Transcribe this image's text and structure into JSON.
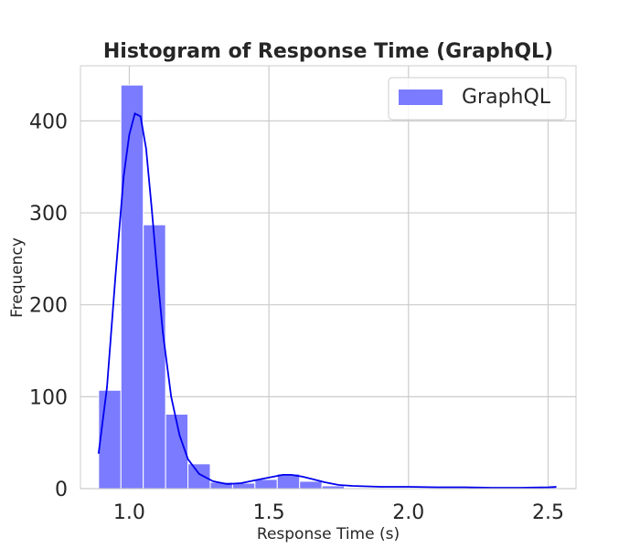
{
  "chart_data": {
    "type": "bar",
    "title": "Histogram of Response Time (GraphQL)",
    "xlabel": "Response Time (s)",
    "ylabel": "Frequency",
    "xlim": [
      0.825,
      2.6
    ],
    "ylim": [
      0,
      460
    ],
    "xticks": [
      1.0,
      1.5,
      2.0,
      2.5
    ],
    "xtick_labels": [
      "1.0",
      "1.5",
      "2.0",
      "2.5"
    ],
    "yticks": [
      0,
      100,
      200,
      300,
      400
    ],
    "ytick_labels": [
      "0",
      "100",
      "200",
      "300",
      "400"
    ],
    "grid": true,
    "legend": {
      "position": "top-right",
      "entries": [
        "GraphQL"
      ]
    },
    "colors": {
      "bar": "#7b7bff",
      "kde": "#0000ee",
      "grid": "#cccccc",
      "spine": "#cccccc"
    },
    "series": [
      {
        "name": "GraphQL",
        "bin_edges": [
          0.89,
          0.97,
          1.05,
          1.13,
          1.21,
          1.29,
          1.37,
          1.45,
          1.53,
          1.61,
          1.69,
          1.77,
          1.85,
          1.93,
          2.01,
          2.09,
          2.17,
          2.25,
          2.33,
          2.41,
          2.49,
          2.53
        ],
        "values": [
          107,
          439,
          287,
          81,
          27,
          7,
          6,
          10,
          16,
          8,
          3,
          1,
          1,
          1,
          1,
          1,
          0,
          0,
          0,
          1,
          2
        ]
      }
    ],
    "kde": {
      "x": [
        0.89,
        0.92,
        0.95,
        0.98,
        1.0,
        1.02,
        1.04,
        1.06,
        1.08,
        1.1,
        1.12,
        1.15,
        1.18,
        1.21,
        1.25,
        1.3,
        1.35,
        1.4,
        1.45,
        1.5,
        1.55,
        1.58,
        1.62,
        1.66,
        1.7,
        1.75,
        1.8,
        1.9,
        2.0,
        2.1,
        2.2,
        2.3,
        2.4,
        2.5,
        2.53
      ],
      "y": [
        38,
        110,
        230,
        340,
        385,
        408,
        405,
        370,
        305,
        235,
        170,
        100,
        58,
        32,
        16,
        8,
        5,
        6,
        9,
        12,
        15,
        15,
        13,
        10,
        7,
        4,
        3,
        2,
        2,
        1.5,
        1.5,
        1,
        1,
        1.5,
        2
      ]
    }
  }
}
